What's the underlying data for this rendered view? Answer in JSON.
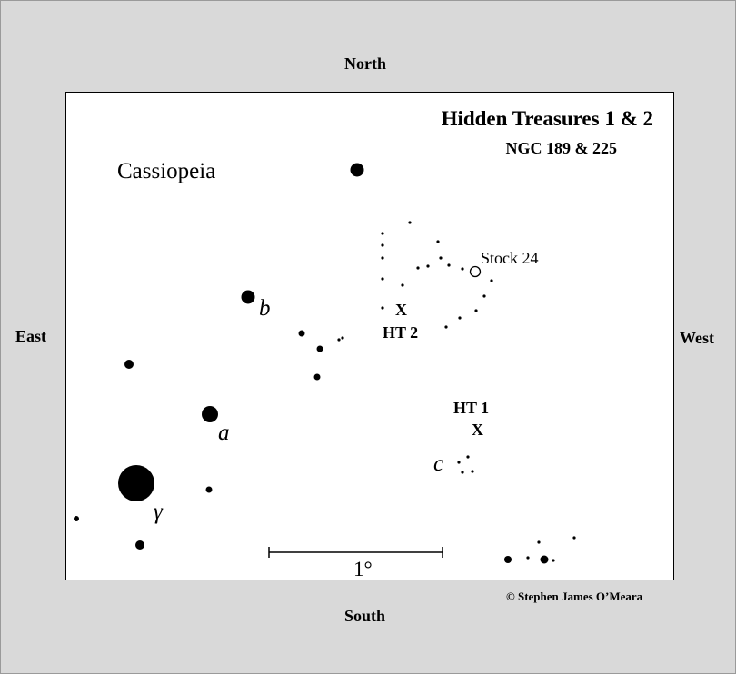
{
  "directions": {
    "north": "North",
    "south": "South",
    "east": "East",
    "west": "West"
  },
  "chart": {
    "title": "Hidden Treasures 1 & 2",
    "subtitle": "NGC 189 & 225",
    "constellation": "Cassiopeia",
    "scale_label": "1°",
    "copyright": "© Stephen James O’Meara"
  },
  "labels": {
    "star_b": "b",
    "star_a": "a",
    "star_c": "c",
    "star_gamma": "γ",
    "stock24": "Stock 24",
    "ht1": "HT 1",
    "ht2": "HT 2",
    "marker_x": "X"
  },
  "colors": {
    "background": "#d9d9d9",
    "chart_background": "#ffffff",
    "ink": "#000000"
  }
}
